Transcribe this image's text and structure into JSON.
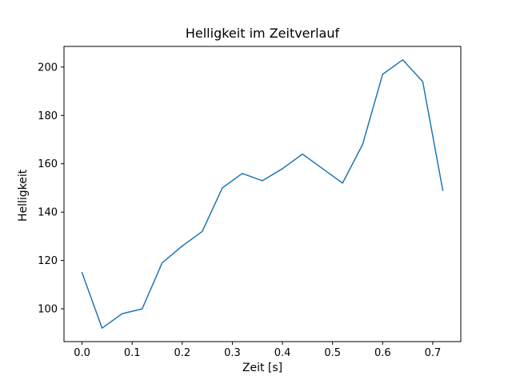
{
  "chart_data": {
    "type": "line",
    "title": "Helligkeit im Zeitverlauf",
    "xlabel": "Zeit [s]",
    "ylabel": "Helligkeit",
    "x": [
      0.0,
      0.04,
      0.08,
      0.12,
      0.16,
      0.2,
      0.24,
      0.28,
      0.32,
      0.36,
      0.4,
      0.44,
      0.48,
      0.52,
      0.56,
      0.6,
      0.64,
      0.68,
      0.72
    ],
    "y": [
      115,
      92,
      98,
      100,
      119,
      126,
      132,
      150,
      156,
      153,
      158,
      164,
      158,
      152,
      168,
      197,
      203,
      194,
      149
    ],
    "xlim": [
      -0.036,
      0.756
    ],
    "ylim": [
      86.45,
      208.55
    ],
    "x_ticks": [
      0.0,
      0.1,
      0.2,
      0.3,
      0.4,
      0.5,
      0.6,
      0.7
    ],
    "x_tick_labels": [
      "0.0",
      "0.1",
      "0.2",
      "0.3",
      "0.4",
      "0.5",
      "0.6",
      "0.7"
    ],
    "y_ticks": [
      100,
      120,
      140,
      160,
      180,
      200
    ],
    "y_tick_labels": [
      "100",
      "120",
      "140",
      "160",
      "180",
      "200"
    ],
    "line_color": "#1f77b4",
    "axis_color": "#000000",
    "grid": false,
    "legend_position": "none"
  }
}
